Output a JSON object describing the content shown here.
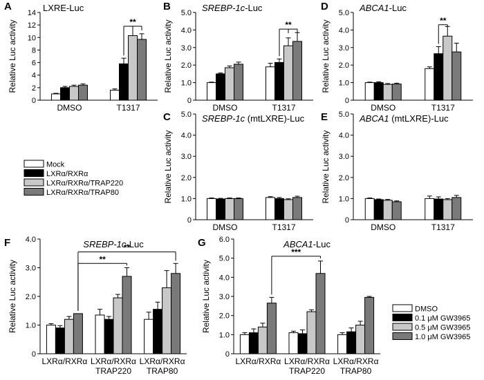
{
  "legend_a": {
    "entries": [
      {
        "label": "Mock",
        "color": "#ffffff"
      },
      {
        "label": "LXRα/RXRα",
        "color": "#000000"
      },
      {
        "label": "LXRα/RXRα/TRAP220",
        "color": "#c8c8c8"
      },
      {
        "label": "LXRα/RXRα/TRAP80",
        "color": "#7a7a7a"
      }
    ]
  },
  "legend_g": {
    "entries": [
      {
        "label": "DMSO",
        "color": "#ffffff"
      },
      {
        "label": "0.1 μM GW3965",
        "color": "#000000"
      },
      {
        "label": "0.5 μM GW3965",
        "color": "#c8c8c8"
      },
      {
        "label": "1.0 μM GW3965",
        "color": "#7a7a7a"
      }
    ]
  },
  "chart_data": [
    {
      "id": "A",
      "type": "bar",
      "panel_label": "A",
      "title": "LXRE-Luc",
      "title_italic": "",
      "ylabel": "Relative Luc activity",
      "ylim": [
        0,
        14
      ],
      "yticks": [
        "0",
        "2",
        "4",
        "6",
        "8",
        "10",
        "12",
        "14"
      ],
      "categories": [
        "DMSO",
        "T1317"
      ],
      "category_lines": [],
      "series": [
        {
          "values": [
            1.0,
            1.6
          ],
          "errors": [
            0.1,
            0.2
          ],
          "color": "#ffffff"
        },
        {
          "values": [
            2.0,
            5.8
          ],
          "errors": [
            0.2,
            0.9
          ],
          "color": "#000000"
        },
        {
          "values": [
            2.2,
            10.3
          ],
          "errors": [
            0.2,
            1.5
          ],
          "color": "#c8c8c8"
        },
        {
          "values": [
            2.4,
            9.7
          ],
          "errors": [
            0.2,
            0.9
          ],
          "color": "#7a7a7a"
        }
      ],
      "significance": [
        {
          "label": "**",
          "category": 1,
          "from": 1,
          "to": 2,
          "to_end": 3,
          "value": 11.8
        }
      ]
    },
    {
      "id": "B",
      "type": "bar",
      "panel_label": "B",
      "title": "-Luc",
      "title_italic": "SREBP-1c",
      "ylabel": "Relative Luc activity",
      "ylim": [
        0,
        5
      ],
      "yticks": [
        "0",
        "1.0",
        "2.0",
        "3.0",
        "4.0",
        "5.0"
      ],
      "categories": [
        "DMSO",
        "T1317"
      ],
      "category_lines": [],
      "series": [
        {
          "values": [
            1.0,
            1.9
          ],
          "errors": [
            0.03,
            0.2
          ],
          "color": "#ffffff"
        },
        {
          "values": [
            1.5,
            2.15
          ],
          "errors": [
            0.05,
            0.2
          ],
          "color": "#000000"
        },
        {
          "values": [
            1.85,
            3.1
          ],
          "errors": [
            0.1,
            0.45
          ],
          "color": "#c8c8c8"
        },
        {
          "values": [
            2.05,
            3.35
          ],
          "errors": [
            0.12,
            0.5
          ],
          "color": "#7a7a7a"
        }
      ],
      "significance": [
        {
          "label": "**",
          "category": 1,
          "from": 1,
          "to": 2,
          "to_end": 3,
          "value": 4.05
        }
      ]
    },
    {
      "id": "D",
      "type": "bar",
      "panel_label": "D",
      "title": "-Luc",
      "title_italic": "ABCA1",
      "ylabel": "Relative Luc activity",
      "ylim": [
        0,
        5
      ],
      "yticks": [
        "0",
        "1.0",
        "2.0",
        "3.0",
        "4.0",
        "5.0"
      ],
      "categories": [
        "DMSO",
        "T1317"
      ],
      "category_lines": [],
      "series": [
        {
          "values": [
            1.0,
            1.8
          ],
          "errors": [
            0.03,
            0.1
          ],
          "color": "#ffffff"
        },
        {
          "values": [
            1.0,
            2.65
          ],
          "errors": [
            0.05,
            0.4
          ],
          "color": "#000000"
        },
        {
          "values": [
            0.9,
            3.65
          ],
          "errors": [
            0.05,
            0.55
          ],
          "color": "#c8c8c8"
        },
        {
          "values": [
            0.92,
            2.75
          ],
          "errors": [
            0.05,
            0.5
          ],
          "color": "#7a7a7a"
        }
      ],
      "significance": [
        {
          "label": "**",
          "category": 1,
          "from": 1,
          "to": 2,
          "to_end": 2,
          "value": 4.3
        }
      ]
    },
    {
      "id": "C",
      "type": "bar",
      "panel_label": "C",
      "title": " (mtLXRE)-Luc",
      "title_italic": "SREBP-1c",
      "ylabel": "Relative Luc activity",
      "ylim": [
        0,
        5
      ],
      "yticks": [
        "0",
        "1.0",
        "2.0",
        "3.0",
        "4.0",
        "5.0"
      ],
      "categories": [
        "DMSO",
        "T1317"
      ],
      "category_lines": [],
      "series": [
        {
          "values": [
            1.0,
            1.05
          ],
          "errors": [
            0.03,
            0.04
          ],
          "color": "#ffffff"
        },
        {
          "values": [
            0.98,
            1.0
          ],
          "errors": [
            0.03,
            0.05
          ],
          "color": "#000000"
        },
        {
          "values": [
            1.0,
            0.95
          ],
          "errors": [
            0.03,
            0.04
          ],
          "color": "#c8c8c8"
        },
        {
          "values": [
            1.0,
            1.05
          ],
          "errors": [
            0.03,
            0.06
          ],
          "color": "#7a7a7a"
        }
      ],
      "significance": []
    },
    {
      "id": "E",
      "type": "bar",
      "panel_label": "E",
      "title": " (mtLXRE)-Luc",
      "title_italic": "ABCA1",
      "ylabel": "Relative Luc activity",
      "ylim": [
        0,
        5
      ],
      "yticks": [
        "0",
        "1.0",
        "2.0",
        "3.0",
        "4.0",
        "5.0"
      ],
      "categories": [
        "DMSO",
        "T1317"
      ],
      "category_lines": [],
      "series": [
        {
          "values": [
            1.0,
            1.0
          ],
          "errors": [
            0.03,
            0.12
          ],
          "color": "#ffffff"
        },
        {
          "values": [
            0.95,
            0.98
          ],
          "errors": [
            0.03,
            0.1
          ],
          "color": "#000000"
        },
        {
          "values": [
            0.92,
            0.95
          ],
          "errors": [
            0.04,
            0.05
          ],
          "color": "#c8c8c8"
        },
        {
          "values": [
            0.85,
            1.05
          ],
          "errors": [
            0.04,
            0.1
          ],
          "color": "#7a7a7a"
        }
      ],
      "significance": []
    },
    {
      "id": "F",
      "type": "bar",
      "panel_label": "F",
      "title": "-Luc",
      "title_italic": "SREBP-1c",
      "ylabel": "Relative Luc activity",
      "ylim": [
        0,
        4
      ],
      "yticks": [
        "0",
        "1.0",
        "2.0",
        "3.0",
        "4.0"
      ],
      "categories": [
        "LXRα/RXRα",
        "LXRα/RXRα",
        "LXRα/RXRα"
      ],
      "category_lines": [
        [],
        [
          "TRAP220"
        ],
        [
          "TRAP80"
        ]
      ],
      "series": [
        {
          "values": [
            1.0,
            1.35,
            1.2
          ],
          "errors": [
            0.05,
            0.2,
            0.25
          ],
          "color": "#ffffff"
        },
        {
          "values": [
            0.9,
            1.2,
            1.55
          ],
          "errors": [
            0.08,
            0.1,
            0.25
          ],
          "color": "#000000"
        },
        {
          "values": [
            1.2,
            1.95,
            2.3
          ],
          "errors": [
            0.1,
            0.12,
            0.6
          ],
          "color": "#c8c8c8"
        },
        {
          "values": [
            1.4,
            2.7,
            2.8
          ],
          "errors": [
            0.0,
            0.3,
            0.35
          ],
          "color": "#7a7a7a"
        }
      ],
      "significance": [
        {
          "label": "**",
          "category": 0,
          "from": 3,
          "to_category": 1,
          "to": 3,
          "value": 3.15
        },
        {
          "label": "**",
          "category": 0,
          "from": 3,
          "to_category": 2,
          "to": 3,
          "value": 3.55
        }
      ]
    },
    {
      "id": "G",
      "type": "bar",
      "panel_label": "G",
      "title": "-Luc",
      "title_italic": "ABCA1",
      "ylabel": "Relative Luc activity",
      "ylim": [
        0,
        6
      ],
      "yticks": [
        "0",
        "1.0",
        "2.0",
        "3.0",
        "4.0",
        "5.0",
        "6.0"
      ],
      "categories": [
        "LXRα/RXRα",
        "LXRα/RXRα",
        "LXRα/RXRα"
      ],
      "category_lines": [
        [],
        [
          "TRAP220"
        ],
        [
          "TRAP80"
        ]
      ],
      "series": [
        {
          "values": [
            1.0,
            1.1,
            1.0
          ],
          "errors": [
            0.1,
            0.08,
            0.1
          ],
          "color": "#ffffff"
        },
        {
          "values": [
            1.1,
            1.05,
            1.15
          ],
          "errors": [
            0.2,
            0.2,
            0.2
          ],
          "color": "#000000"
        },
        {
          "values": [
            1.4,
            2.2,
            1.5
          ],
          "errors": [
            0.2,
            0.1,
            0.2
          ],
          "color": "#c8c8c8"
        },
        {
          "values": [
            2.65,
            4.2,
            2.95
          ],
          "errors": [
            0.3,
            0.65,
            0.05
          ],
          "color": "#7a7a7a"
        }
      ],
      "significance": [
        {
          "label": "***",
          "category": 0,
          "from": 3,
          "to_category": 1,
          "to": 3,
          "value": 5.1
        }
      ]
    }
  ]
}
